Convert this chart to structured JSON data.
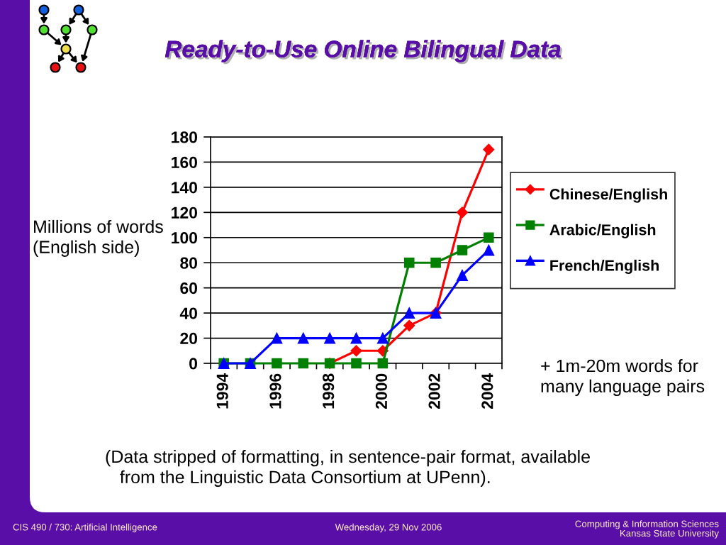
{
  "chart_data": {
    "type": "line",
    "title": "Ready-to-Use Online Bilingual Data",
    "ylabel": "Millions of words\n(English side)",
    "categories": [
      "1994",
      null,
      "1996",
      null,
      "1998",
      null,
      "2000",
      null,
      "2002",
      null,
      "2004"
    ],
    "series": [
      {
        "name": "Chinese/English",
        "color": "#ff0000",
        "marker": "diamond",
        "values": [
          null,
          null,
          null,
          null,
          0,
          10,
          10,
          30,
          40,
          120,
          170
        ]
      },
      {
        "name": "Arabic/English",
        "color": "#008000",
        "marker": "square",
        "values": [
          0,
          0,
          0,
          0,
          0,
          0,
          0,
          80,
          80,
          90,
          100
        ]
      },
      {
        "name": "French/English",
        "color": "#0000ff",
        "marker": "triangle",
        "values": [
          0,
          0,
          20,
          20,
          20,
          20,
          20,
          40,
          40,
          70,
          90
        ]
      }
    ],
    "ylim": [
      0,
      180
    ],
    "yticks": [
      0,
      20,
      40,
      60,
      80,
      100,
      120,
      140,
      160,
      180
    ],
    "grid": "y",
    "legend": "right",
    "line_style": "solid",
    "annotations": [
      "+ 1m-20m words for\nmany language pairs",
      "(Data stripped of formatting, in sentence-pair format, available\n   from the Linguistic Data Consortium at UPenn).",
      "CIS 490 / 730: Artificial Intelligence",
      "Wednesday, 29 Nov 2006",
      "Computing & Information Sciences\nKansas State University"
    ]
  }
}
